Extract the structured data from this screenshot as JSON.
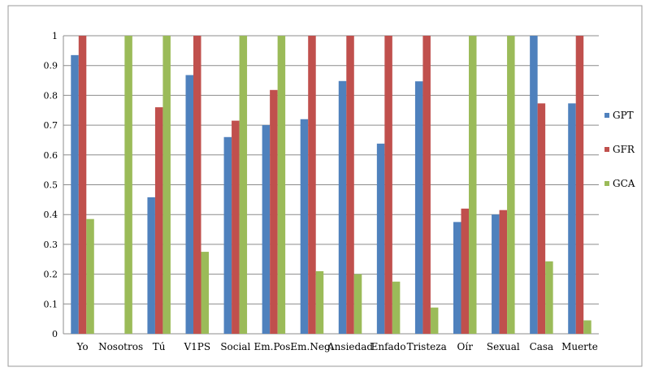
{
  "chart_data": {
    "type": "bar",
    "title": "",
    "xlabel": "",
    "ylabel": "",
    "ylim": [
      0,
      1
    ],
    "yticks": [
      "0",
      "0.1",
      "0.2",
      "0.3",
      "0.4",
      "0.5",
      "0.6",
      "0.7",
      "0.8",
      "0.9",
      "1"
    ],
    "grid": true,
    "legend": "right",
    "categories": [
      "Yo",
      "Nosotros",
      "Tú",
      "V1PS",
      "Social",
      "Em.Pos.",
      "Em.Neg.",
      "Ansiedad",
      "Enfado",
      "Tristeza",
      "Oír",
      "Sexual",
      "Casa",
      "Muerte"
    ],
    "series": [
      {
        "name": "GPT",
        "color": "#4F81BD",
        "values": [
          0.935,
          0,
          0.458,
          0.868,
          0.66,
          0.7,
          0.72,
          0.848,
          0.638,
          0.847,
          0.375,
          0.4,
          1.0,
          0.773
        ]
      },
      {
        "name": "GFR",
        "color": "#C0504D",
        "values": [
          1.0,
          0,
          0.76,
          1.0,
          0.715,
          0.818,
          1.0,
          1.0,
          1.0,
          1.0,
          0.42,
          0.415,
          0.773,
          1.0
        ]
      },
      {
        "name": "GCA",
        "color": "#9BBB59",
        "values": [
          0.385,
          1.0,
          1.0,
          0.275,
          1.0,
          1.0,
          0.21,
          0.2,
          0.175,
          0.088,
          1.0,
          1.0,
          0.243,
          0.045
        ]
      }
    ]
  }
}
